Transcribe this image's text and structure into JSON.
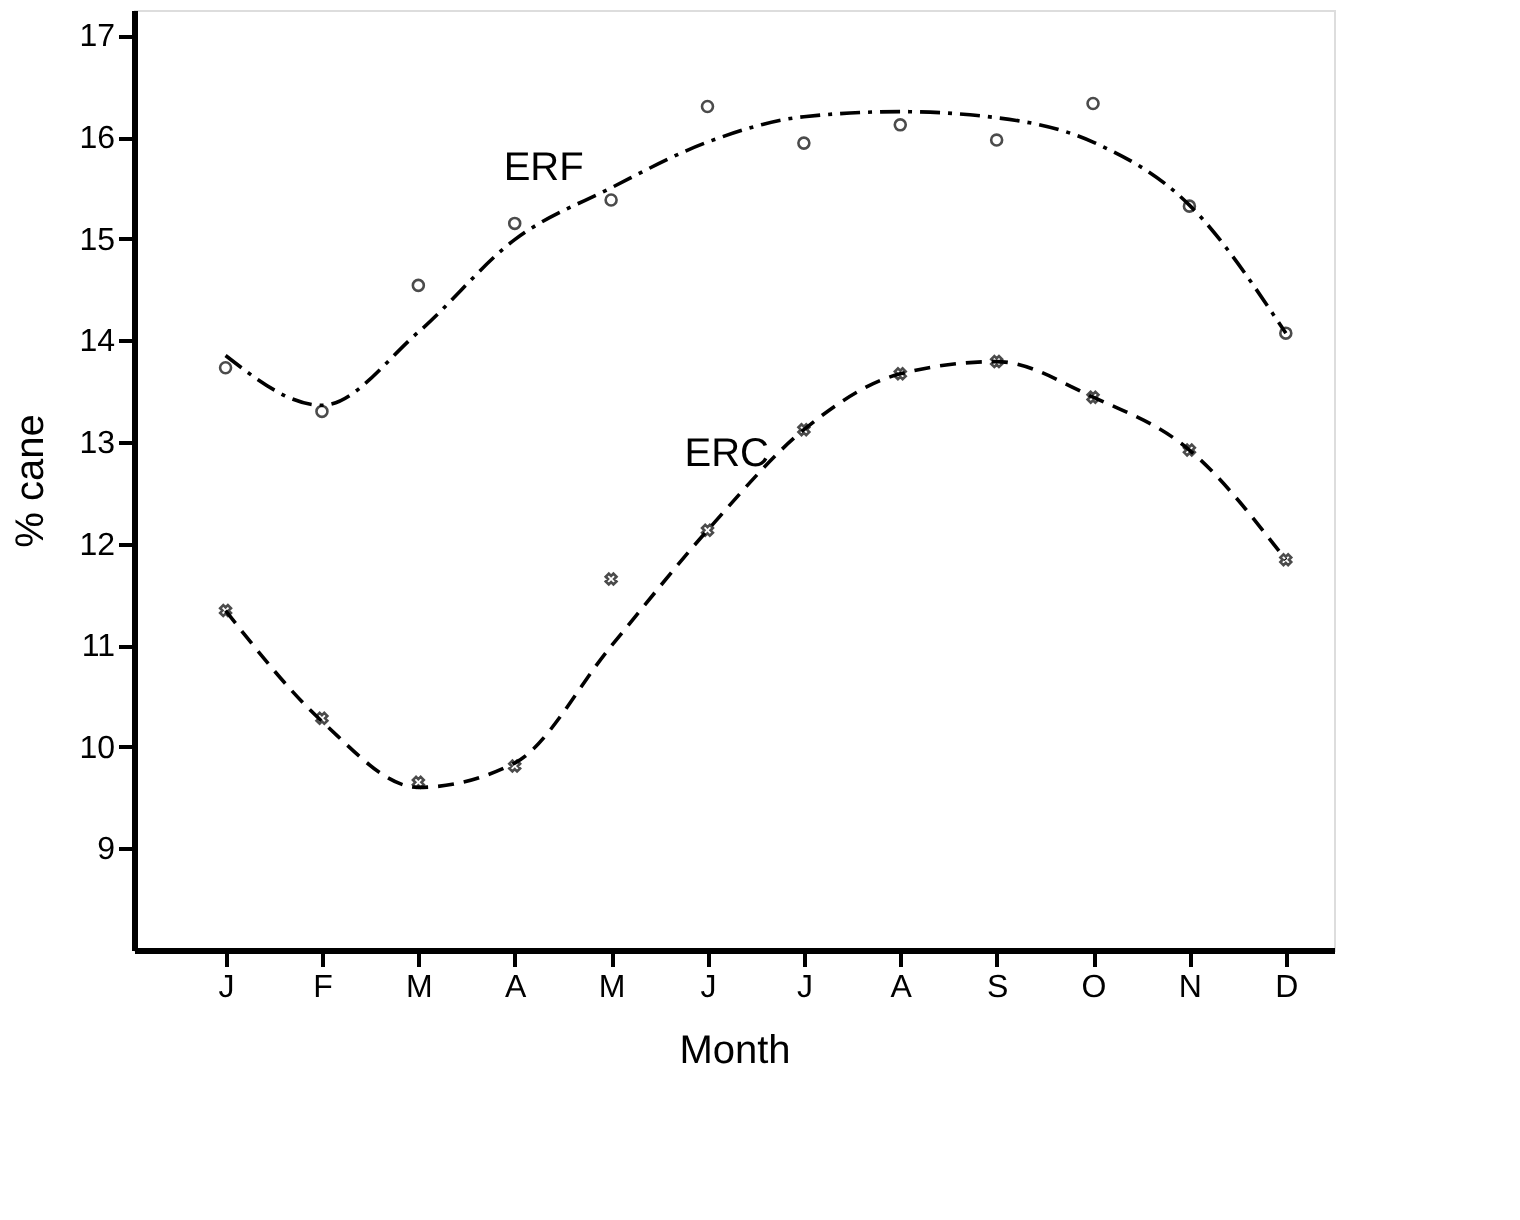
{
  "chart_data": {
    "type": "scatter",
    "xlabel": "Month",
    "ylabel": "% cane",
    "categories": [
      "J",
      "F",
      "M",
      "A",
      "M",
      "J",
      "J",
      "A",
      "S",
      "O",
      "N",
      "D"
    ],
    "ylim": [
      8,
      17.25
    ],
    "yticks": [
      9,
      10,
      11,
      12,
      13,
      14,
      15,
      16,
      17
    ],
    "grid": false,
    "series": [
      {
        "marker": "circle",
        "color": "#000000",
        "values": [
          13.73,
          13.3,
          14.54,
          15.15,
          15.38,
          16.3,
          15.94,
          16.12,
          15.97,
          16.33,
          15.32,
          14.07
        ]
      },
      {
        "type": "line",
        "name": "ERF",
        "line_style": "dashdot",
        "marker": "none",
        "color": "#000000",
        "values": [
          13.85,
          13.36,
          14.08,
          14.99,
          15.5,
          15.95,
          16.2,
          16.25,
          16.19,
          15.95,
          15.33,
          14.07
        ]
      },
      {
        "marker": "cross",
        "color": "#000000",
        "values": [
          11.34,
          10.28,
          9.65,
          9.81,
          11.65,
          12.13,
          13.12,
          13.67,
          13.79,
          13.44,
          12.92,
          11.84
        ]
      },
      {
        "type": "line",
        "name": "ERC",
        "line_style": "dashed",
        "marker": "none",
        "color": "#000000",
        "values": [
          11.34,
          10.25,
          9.6,
          9.84,
          10.99,
          12.13,
          13.12,
          13.67,
          13.79,
          13.44,
          12.92,
          11.84
        ]
      }
    ]
  }
}
